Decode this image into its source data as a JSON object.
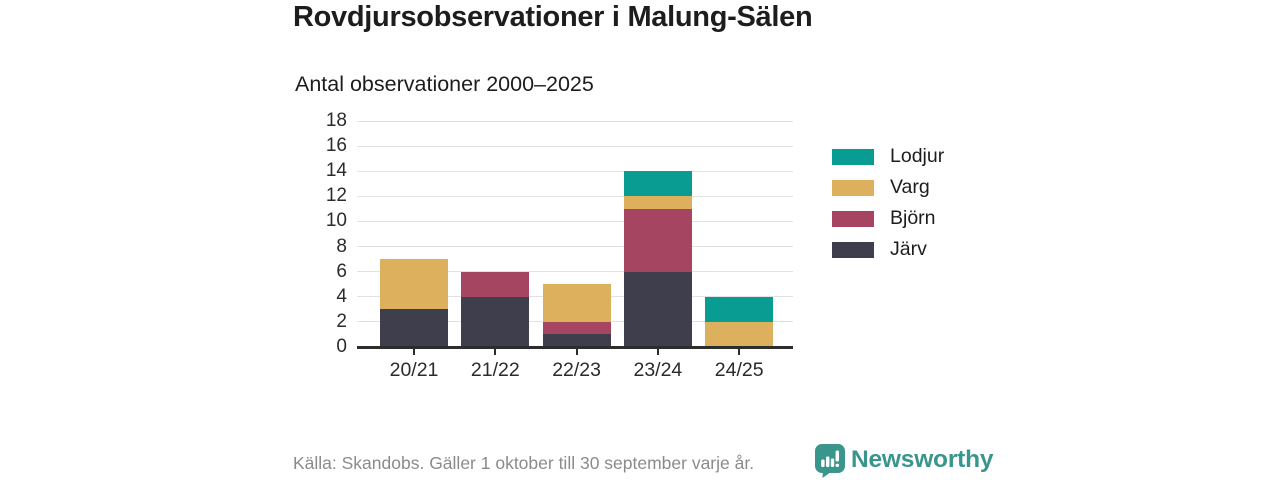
{
  "header": {
    "title": "Rovdjursobservationer i Malung-Sälen",
    "subtitle": "Antal observationer 2000–2025"
  },
  "chart_data": {
    "type": "bar",
    "stacked": true,
    "title": "Rovdjursobservationer i Malung-Sälen",
    "subtitle": "Antal observationer 2000–2025",
    "categories": [
      "20/21",
      "21/22",
      "22/23",
      "23/24",
      "24/25"
    ],
    "series": [
      {
        "name": "Järv",
        "key": "jarv",
        "color": "#3e3e4d",
        "values": [
          3,
          4,
          1,
          6,
          0
        ]
      },
      {
        "name": "Björn",
        "key": "bjorn",
        "color": "#a64562",
        "values": [
          0,
          2,
          1,
          5,
          0
        ]
      },
      {
        "name": "Varg",
        "key": "varg",
        "color": "#dcb05c",
        "values": [
          4,
          0,
          3,
          1,
          2
        ]
      },
      {
        "name": "Lodjur",
        "key": "lodjur",
        "color": "#089c92",
        "values": [
          0,
          0,
          0,
          2,
          2
        ]
      }
    ],
    "totals": [
      7,
      6,
      5,
      14,
      4
    ],
    "stack_order": "first series at bottom",
    "legend": [
      "Lodjur",
      "Varg",
      "Björn",
      "Järv"
    ],
    "legend_position": "right",
    "xlabel": "",
    "ylabel": "",
    "ylim": [
      0,
      18
    ],
    "ytick_step": 2,
    "grid": true,
    "grid_color": "#e2e2e2",
    "axis_color": "#2d2d2d"
  },
  "footer": {
    "source": "Källa: Skandobs. Gäller 1 oktober till 30 september varje år.",
    "brand": "Newsworthy",
    "brand_color": "#3a968d",
    "logo_icon": "speech-bubble-bar-chart-exclamation"
  }
}
